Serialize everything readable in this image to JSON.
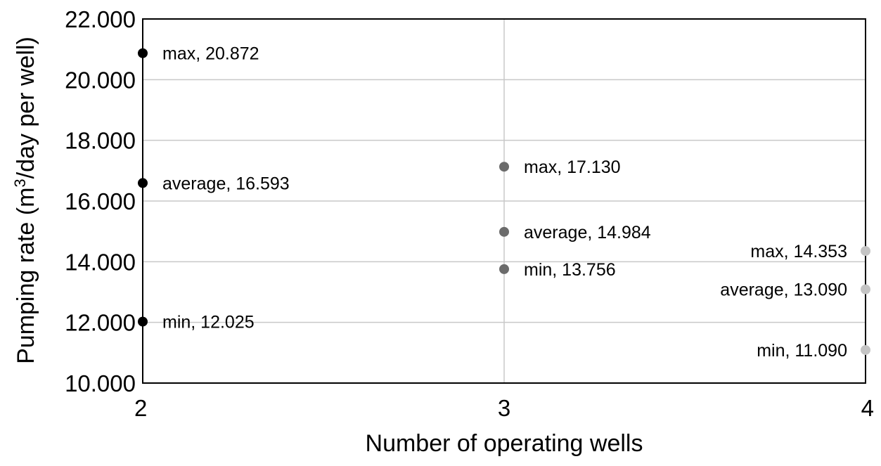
{
  "chart_data": {
    "type": "scatter",
    "title": "",
    "xlabel": "Number of operating wells",
    "ylabel_main": "Pumping rate (m",
    "ylabel_sup": "3",
    "ylabel_tail": "/day per well)",
    "xlim": [
      2,
      4
    ],
    "ylim": [
      10,
      22
    ],
    "x_ticks": [
      "2",
      "3",
      "4"
    ],
    "y_ticks": [
      "10.000",
      "12.000",
      "14.000",
      "16.000",
      "18.000",
      "20.000",
      "22.000"
    ],
    "grid": true,
    "points": [
      {
        "x": 2,
        "y": 20.872,
        "label": "max, 20.872",
        "color": "#000000"
      },
      {
        "x": 2,
        "y": 16.593,
        "label": "average, 16.593",
        "color": "#000000"
      },
      {
        "x": 2,
        "y": 12.025,
        "label": "min, 12.025",
        "color": "#000000"
      },
      {
        "x": 3,
        "y": 17.13,
        "label": "max, 17.130",
        "color": "#6b6b6b"
      },
      {
        "x": 3,
        "y": 14.984,
        "label": "average, 14.984",
        "color": "#6b6b6b"
      },
      {
        "x": 3,
        "y": 13.756,
        "label": "min, 13.756",
        "color": "#6b6b6b"
      },
      {
        "x": 4,
        "y": 14.353,
        "label": "max, 14.353",
        "color": "#c4c4c4"
      },
      {
        "x": 4,
        "y": 13.09,
        "label": "average, 13.090",
        "color": "#c4c4c4"
      },
      {
        "x": 4,
        "y": 11.09,
        "label": "min, 11.090",
        "color": "#c4c4c4"
      }
    ]
  }
}
